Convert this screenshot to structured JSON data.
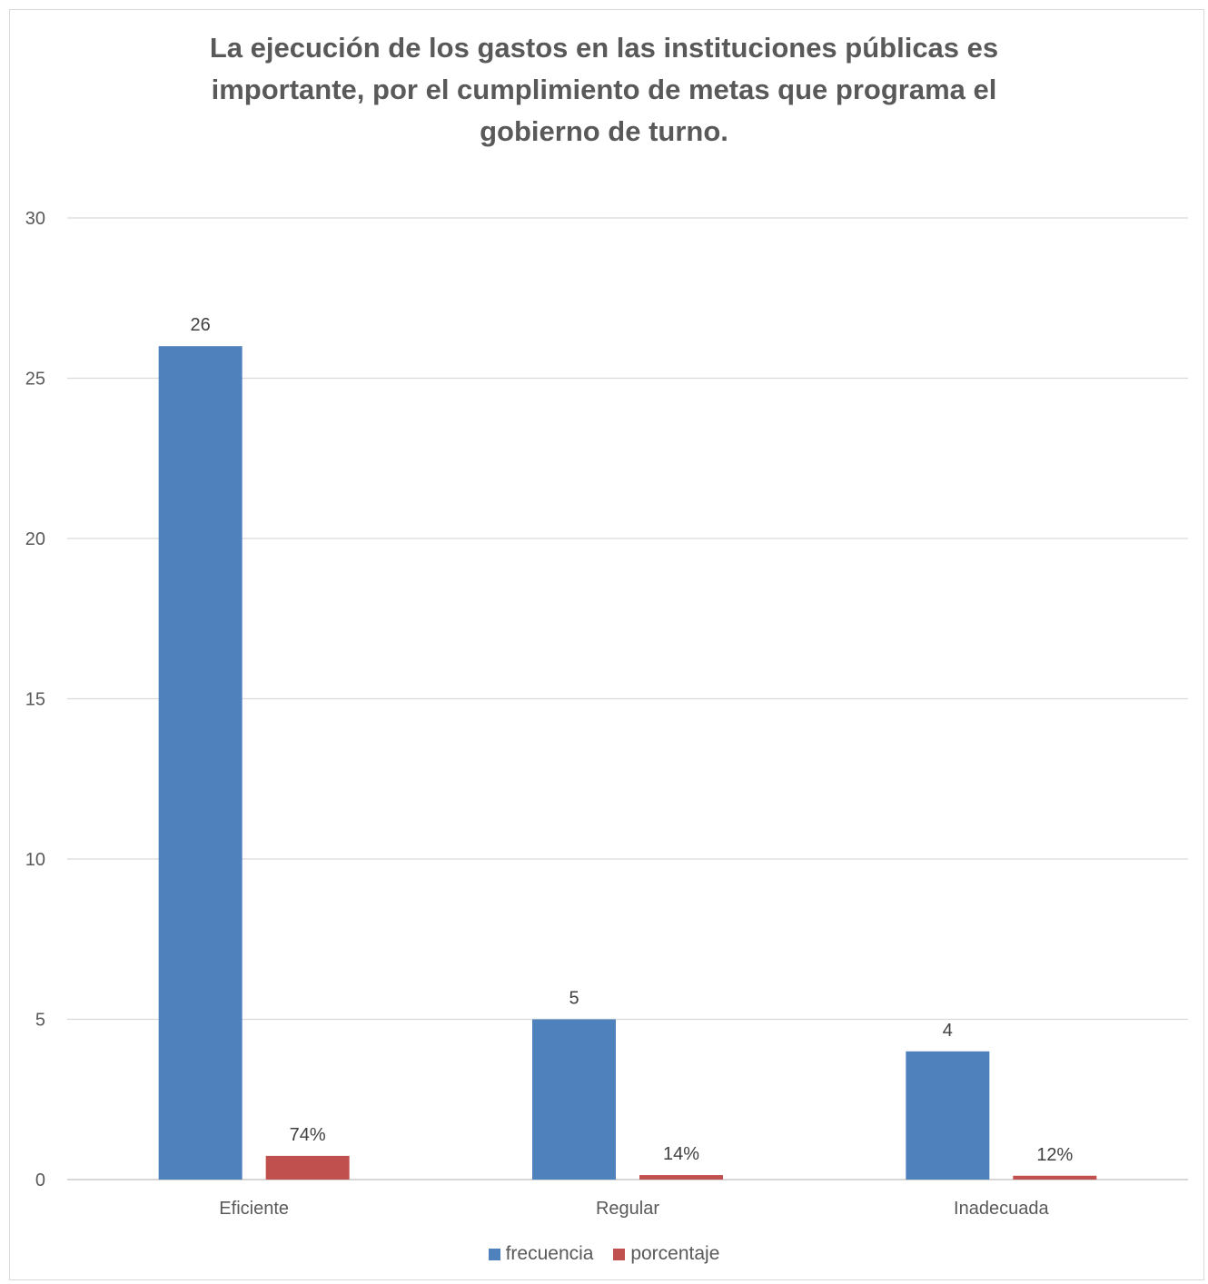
{
  "chart_data": {
    "type": "bar",
    "title": "La ejecución de los gastos en las instituciones públicas es importante, por el cumplimiento de metas que programa el gobierno de turno.",
    "categories": [
      "Eficiente",
      "Regular",
      "Inadecuada"
    ],
    "series": [
      {
        "name": "frecuencia",
        "values": [
          26,
          5,
          4
        ],
        "labels": [
          "26",
          "5",
          "4"
        ],
        "color": "#4f81bd"
      },
      {
        "name": "porcentaje",
        "values": [
          0.74,
          0.14,
          0.12
        ],
        "labels": [
          "74%",
          "14%",
          "12%"
        ],
        "color": "#c0504d"
      }
    ],
    "ylim": [
      0,
      30
    ],
    "yticks": [
      0,
      5,
      10,
      15,
      20,
      25,
      30
    ],
    "grid": true,
    "legend_position": "bottom"
  }
}
